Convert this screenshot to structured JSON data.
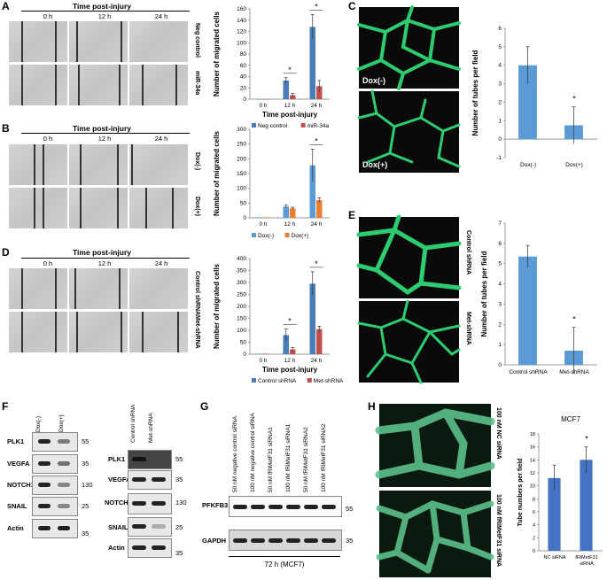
{
  "panels": {
    "A": {
      "label": "A",
      "header": "Time post-injury",
      "timepoints": [
        "0 h",
        "12 h",
        "24 h"
      ],
      "rows": [
        "Neg control",
        "miR-34a"
      ],
      "chart": {
        "ylabel": "Number of migrated cells",
        "xlabel": "Time post-injury",
        "ylim": [
          0,
          160
        ],
        "yticks": [
          "0",
          "20",
          "40",
          "60",
          "80",
          "100",
          "120",
          "140",
          "160"
        ],
        "categories": [
          "0 h",
          "12 h",
          "24 h"
        ],
        "series": [
          {
            "name": "Neg control",
            "color": "#4a7ebb",
            "values": [
              0,
              33,
              128
            ],
            "err": [
              0,
              5,
              22
            ]
          },
          {
            "name": "miR-34a",
            "color": "#c0504d",
            "values": [
              0,
              7,
              23
            ],
            "err": [
              0,
              3,
              10
            ]
          }
        ],
        "sig": [
          "",
          "*",
          "*"
        ]
      }
    },
    "B": {
      "label": "B",
      "header": "Time post-injury",
      "timepoints": [
        "0 h",
        "12 h",
        "24 h"
      ],
      "rows": [
        "Dox(-)",
        "Dox(+)"
      ],
      "chart": {
        "ylabel": "Number of migrated cells",
        "ylim": [
          0,
          300
        ],
        "yticks": [
          "0",
          "50",
          "100",
          "150",
          "200",
          "250",
          "300"
        ],
        "categories": [
          "0 h",
          "12 h",
          "24 h"
        ],
        "series": [
          {
            "name": "Dox(-)",
            "color": "#5b9bd5",
            "values": [
              2,
              38,
              178
            ],
            "err": [
              0,
              5,
              55
            ]
          },
          {
            "name": "Dox(+)",
            "color": "#ed7d31",
            "values": [
              2,
              32,
              60
            ],
            "err": [
              0,
              4,
              8
            ]
          }
        ],
        "sig": [
          "",
          "",
          "*"
        ]
      }
    },
    "C": {
      "label": "C",
      "images": [
        "Dox(-)",
        "Dox(+)"
      ],
      "chart": {
        "ylabel": "Number of tubes per field",
        "ylim": [
          -1,
          6
        ],
        "yticks": [
          "-1",
          "0",
          "1",
          "2",
          "3",
          "4",
          "5",
          "6"
        ],
        "categories": [
          "Dox(-)",
          "Dox(+)"
        ],
        "values": [
          4,
          0.75
        ],
        "err": [
          1,
          1
        ],
        "color": "#5b9bd5",
        "sig": [
          "",
          "*"
        ]
      }
    },
    "D": {
      "label": "D",
      "header": "Time post-injury",
      "timepoints": [
        "0 h",
        "12 h",
        "24 h"
      ],
      "rows": [
        "Control shRNA",
        "Met-shRNA"
      ],
      "chart": {
        "ylabel": "Number of migrated cells",
        "xlabel": "Time post-injury",
        "ylim": [
          0,
          400
        ],
        "yticks": [
          "0",
          "50",
          "100",
          "150",
          "200",
          "250",
          "300",
          "350",
          "400"
        ],
        "categories": [
          "0 h",
          "12 h",
          "24 h"
        ],
        "series": [
          {
            "name": "Control shRNA",
            "color": "#4a7ebb",
            "values": [
              2,
              80,
              295
            ],
            "err": [
              0,
              25,
              50
            ]
          },
          {
            "name": "Met-shRNA",
            "color": "#c0504d",
            "values": [
              2,
              20,
              105
            ],
            "err": [
              0,
              8,
              12
            ]
          }
        ],
        "sig": [
          "",
          "*",
          "*"
        ]
      }
    },
    "E": {
      "label": "E",
      "images": [
        "Control shRNA",
        "Met-shRNA"
      ],
      "chart": {
        "ylabel": "Number of tubes per field",
        "ylim": [
          0,
          7
        ],
        "yticks": [
          "0",
          "1",
          "2",
          "3",
          "4",
          "5",
          "6",
          "7"
        ],
        "categories": [
          "Control shRNA",
          "Met-shRNA"
        ],
        "values": [
          5.35,
          0.7
        ],
        "err": [
          0.55,
          1.15
        ],
        "color": "#5b9bd5",
        "sig": [
          "",
          "*"
        ]
      }
    },
    "F": {
      "label": "F",
      "left": {
        "lanes": [
          "Dox(-)",
          "Dox(+)"
        ],
        "proteins": [
          "PLK1",
          "VEGFA",
          "NOTCH1",
          "SNAIL",
          "Actin"
        ],
        "mw": [
          "55",
          "35",
          "130",
          "25",
          "35"
        ]
      },
      "right": {
        "lanes": [
          "Control shRNA",
          "Met-shRNA"
        ],
        "proteins": [
          "PLK1",
          "VEGFA",
          "NOTCH1",
          "SNAIL",
          "Actin"
        ],
        "mw": [
          "55",
          "35",
          "130",
          "25",
          "35"
        ]
      }
    },
    "G": {
      "label": "G",
      "lanes": [
        "50 nM negative control siRNA",
        "100 nM negative control siRNA",
        "50 nM fRiMetF31 siRNA1",
        "100 nM fRiMetF31 siRNA1",
        "50 nM fRiMetF31 siRNA2",
        "100 nM fRiMetF31 siRNA2"
      ],
      "proteins": [
        "PFKFB3",
        "GAPDH"
      ],
      "mw": [
        "55",
        "35"
      ],
      "footer": "72 h (MCF7)"
    },
    "H": {
      "label": "H",
      "images": [
        "100 nM NC siRNA",
        "100 nM fRiMetF31 siRNA"
      ],
      "chart": {
        "title": "MCF7",
        "ylabel": "Tube numbers per field",
        "ylim": [
          0,
          18
        ],
        "yticks": [
          "0",
          "2",
          "4",
          "6",
          "8",
          "10",
          "12",
          "14",
          "16",
          "18"
        ],
        "categories": [
          "NC siRNA",
          "fRiMetF31 siRNA"
        ],
        "values": [
          11.2,
          14
        ],
        "err": [
          2,
          2
        ],
        "color": "#4472c4",
        "sig": [
          "",
          "*"
        ]
      }
    }
  }
}
